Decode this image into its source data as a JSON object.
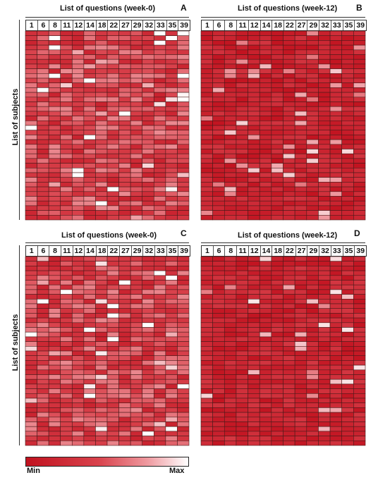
{
  "colors": {
    "min": "#c1121f",
    "max": "#ffffff",
    "cell_border": "#4a1a1a"
  },
  "question_numbers": [
    "1",
    "6",
    "8",
    "11",
    "12",
    "14",
    "18",
    "22",
    "27",
    "29",
    "32",
    "33",
    "35",
    "39"
  ],
  "panels": [
    {
      "letter": "A",
      "title": "List of questions (week-0)",
      "ylabel": "List of subjects",
      "seed": 11,
      "rows": 40,
      "mean": 0.42,
      "spread": 0.55
    },
    {
      "letter": "B",
      "title": "List of questions (week-12)",
      "ylabel": "",
      "seed": 23,
      "rows": 40,
      "mean": 0.16,
      "spread": 0.3
    },
    {
      "letter": "C",
      "title": "List of questions (week-0)",
      "ylabel": "List of subjects",
      "seed": 37,
      "rows": 40,
      "mean": 0.42,
      "spread": 0.55
    },
    {
      "letter": "D",
      "title": "List of questions (week-12)",
      "ylabel": "",
      "seed": 53,
      "rows": 40,
      "mean": 0.18,
      "spread": 0.32
    }
  ],
  "legend": {
    "min_label": "Min",
    "max_label": "Max"
  },
  "chart_data": [
    {
      "type": "heatmap",
      "title": "List of questions (week-0)",
      "xlabel": "List of questions (week-0)",
      "ylabel": "List of subjects",
      "panel": "A",
      "x": [
        "1",
        "6",
        "8",
        "11",
        "12",
        "14",
        "18",
        "22",
        "27",
        "29",
        "32",
        "33",
        "35",
        "39"
      ],
      "color_scale": [
        "Min",
        "Max"
      ]
    },
    {
      "type": "heatmap",
      "title": "List of questions (week-12)",
      "xlabel": "List of questions (week-12)",
      "ylabel": "",
      "panel": "B",
      "x": [
        "1",
        "6",
        "8",
        "11",
        "12",
        "14",
        "18",
        "22",
        "27",
        "29",
        "32",
        "33",
        "35",
        "39"
      ],
      "color_scale": [
        "Min",
        "Max"
      ]
    },
    {
      "type": "heatmap",
      "title": "List of questions (week-0)",
      "xlabel": "List of questions (week-0)",
      "ylabel": "List of subjects",
      "panel": "C",
      "x": [
        "1",
        "6",
        "8",
        "11",
        "12",
        "14",
        "18",
        "22",
        "27",
        "29",
        "32",
        "33",
        "35",
        "39"
      ],
      "color_scale": [
        "Min",
        "Max"
      ]
    },
    {
      "type": "heatmap",
      "title": "List of questions (week-12)",
      "xlabel": "List of questions (week-12)",
      "ylabel": "",
      "panel": "D",
      "x": [
        "1",
        "6",
        "8",
        "11",
        "12",
        "14",
        "18",
        "22",
        "27",
        "29",
        "32",
        "33",
        "35",
        "39"
      ],
      "color_scale": [
        "Min",
        "Max"
      ]
    }
  ]
}
